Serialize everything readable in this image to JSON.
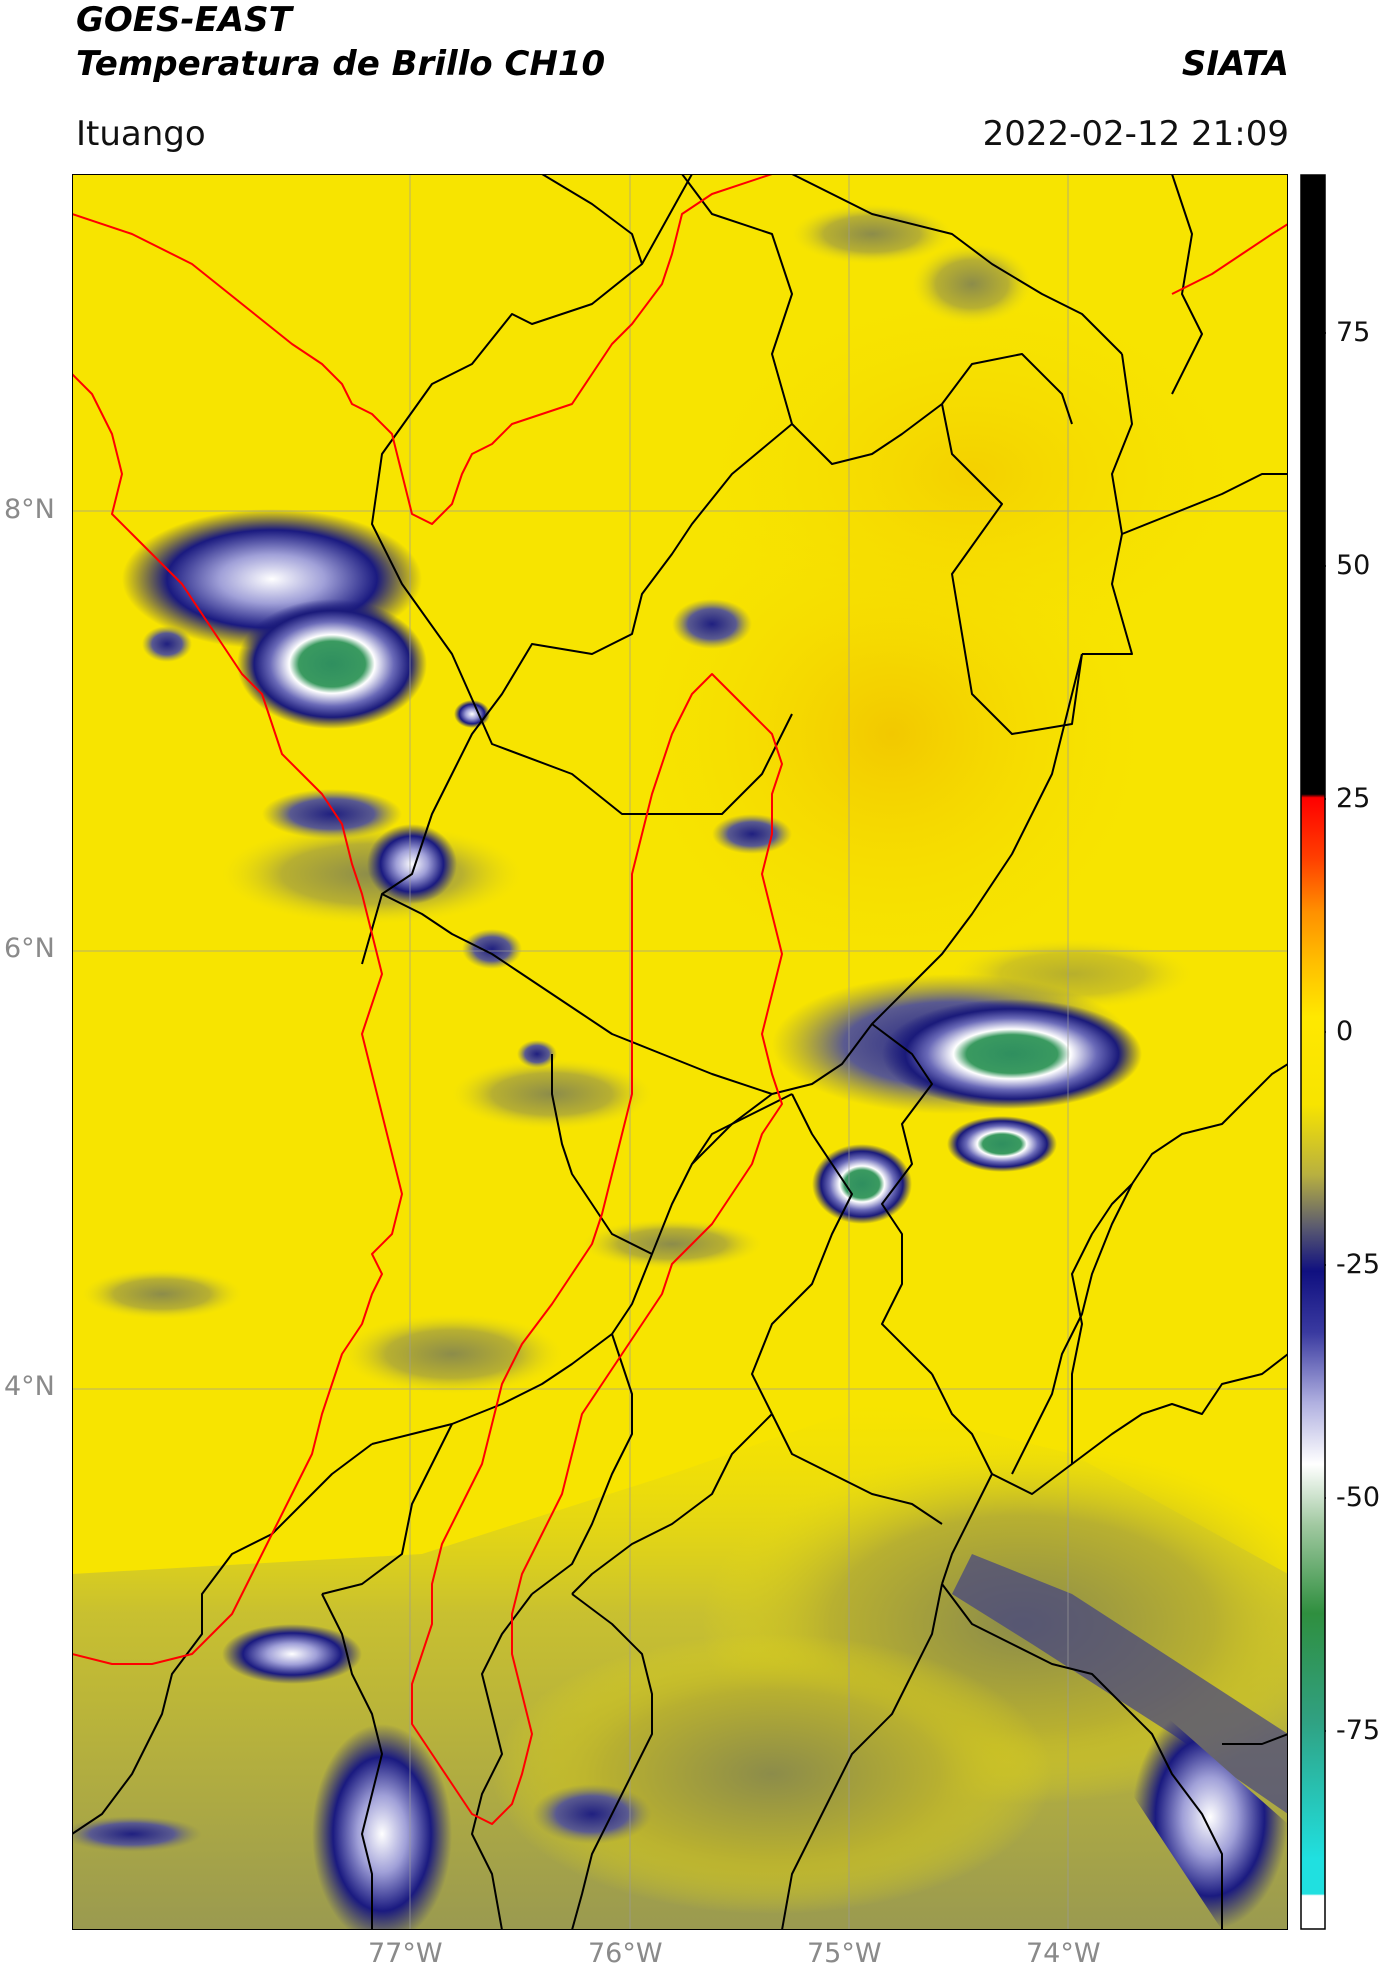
{
  "header": {
    "title_line1": "GOES-EAST",
    "title_line2": "Temperatura de Brillo CH10",
    "brand": "SIATA",
    "region": "Ituango",
    "timestamp": "2022-02-12 21:09"
  },
  "map": {
    "lat_labels": [
      "8°N",
      "6°N",
      "4°N"
    ],
    "lon_labels": [
      "77°W",
      "76°W",
      "75°W",
      "74°W"
    ],
    "background_color": "#f7e400",
    "border_color_national": "#ff0000",
    "border_color_departments": "#000000"
  },
  "colorbar": {
    "tick_labels": [
      "75",
      "50",
      "25",
      "0",
      "-25",
      "-50",
      "-75"
    ],
    "colors": {
      "top_black": "#000000",
      "red": "#ff0000",
      "orange": "#ff8c00",
      "yellow": "#f7e400",
      "olive": "#9a9a40",
      "navy": "#1a1a8a",
      "white": "#ffffff",
      "green": "#2f8f3f",
      "cyan": "#20e0e0"
    }
  }
}
